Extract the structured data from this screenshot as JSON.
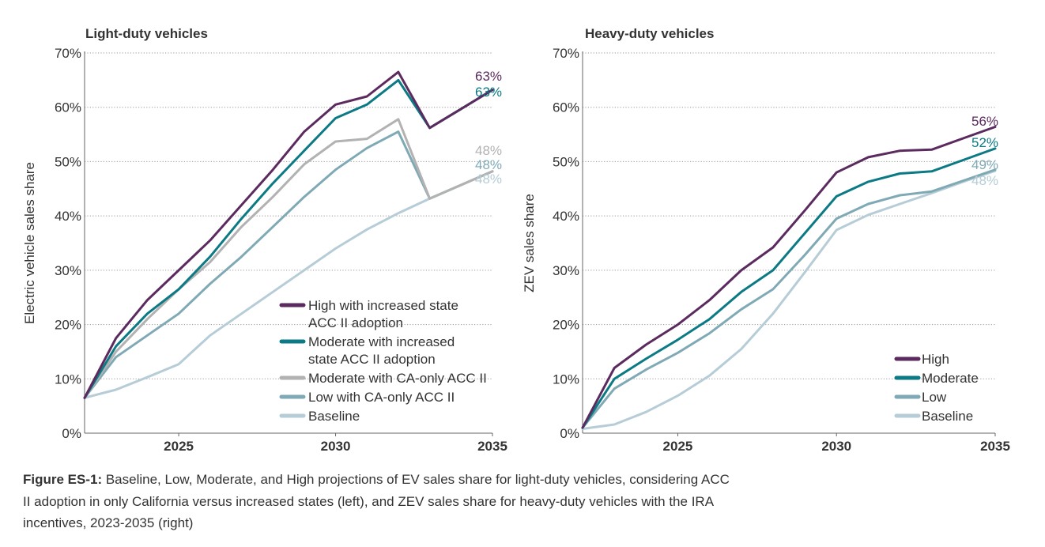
{
  "chart_data": [
    {
      "type": "line",
      "title": "Light-duty vehicles",
      "ylabel": "Electric vehicle sales share",
      "xlabel": "",
      "xlim": [
        2022,
        2035
      ],
      "ylim": [
        0,
        70
      ],
      "yticks": [
        "0%",
        "10%",
        "20%",
        "30%",
        "40%",
        "50%",
        "60%",
        "70%"
      ],
      "xticks": [
        "2025",
        "2030",
        "2035"
      ],
      "grid": "horizontal dotted",
      "legend_position": "bottom-right",
      "x": [
        2022,
        2023,
        2024,
        2025,
        2026,
        2027,
        2028,
        2029,
        2030,
        2031,
        2032,
        2033,
        2034,
        2035
      ],
      "series": [
        {
          "name": "High with increased state ACC II adoption",
          "legend_lines": [
            "High with increased state",
            "ACC II adoption"
          ],
          "color": "#5b2a5e",
          "values": [
            6.5,
            17.5,
            24.5,
            30,
            35.5,
            42,
            48.5,
            55.5,
            60.5,
            62,
            66.5,
            56.2,
            59.7,
            63.2
          ],
          "end_label": "63%"
        },
        {
          "name": "Moderate with increased state ACC II adoption",
          "legend_lines": [
            "Moderate with increased",
            "state ACC II adoption"
          ],
          "color": "#0b7a84",
          "values": [
            6.5,
            16,
            22,
            26.5,
            32.5,
            39.5,
            46,
            52,
            58,
            60.5,
            65,
            56.2,
            59.7,
            63.2
          ],
          "end_label": "63%"
        },
        {
          "name": "Moderate with CA-only ACC II",
          "legend_lines": [
            "Moderate with CA-only ACC II"
          ],
          "color": "#b2b2b2",
          "values": [
            6.5,
            15,
            21,
            26.5,
            31.5,
            38,
            43.5,
            49.5,
            53.7,
            54.2,
            57.8,
            43.2,
            45.7,
            48.2
          ],
          "end_label": "48%"
        },
        {
          "name": "Low with CA-only ACC II",
          "legend_lines": [
            "Low with CA-only ACC II"
          ],
          "color": "#7fa9b4",
          "values": [
            6.5,
            14,
            18,
            22,
            27.5,
            32.5,
            38,
            43.5,
            48.5,
            52.5,
            55.5,
            43.2,
            45.7,
            48.2
          ],
          "end_label": "48%"
        },
        {
          "name": "Baseline",
          "legend_lines": [
            "Baseline"
          ],
          "color": "#b6ccd6",
          "values": [
            6.5,
            8,
            10.3,
            12.7,
            18,
            22,
            26,
            30,
            34,
            37.5,
            40.5,
            43.2,
            45.7,
            48.2
          ],
          "end_label": "48%"
        }
      ]
    },
    {
      "type": "line",
      "title": "Heavy-duty vehicles",
      "ylabel": "ZEV sales share",
      "xlabel": "",
      "xlim": [
        2022,
        2035
      ],
      "ylim": [
        0,
        70
      ],
      "yticks": [
        "0%",
        "10%",
        "20%",
        "30%",
        "40%",
        "50%",
        "60%",
        "70%"
      ],
      "xticks": [
        "2025",
        "2030",
        "2035"
      ],
      "grid": "horizontal dotted",
      "legend_position": "bottom-right",
      "x": [
        2022,
        2023,
        2024,
        2025,
        2026,
        2027,
        2028,
        2029,
        2030,
        2031,
        2032,
        2033,
        2034,
        2035
      ],
      "series": [
        {
          "name": "High",
          "legend_lines": [
            "High"
          ],
          "color": "#5b2a5e",
          "values": [
            1,
            12,
            16.3,
            20,
            24.5,
            30,
            34.2,
            41,
            48,
            50.8,
            52,
            52.2,
            54.3,
            56.4
          ],
          "end_label": "56%"
        },
        {
          "name": "Moderate",
          "legend_lines": [
            "Moderate"
          ],
          "color": "#0b7a84",
          "values": [
            1,
            10,
            13.7,
            17.2,
            21,
            26,
            30,
            36.8,
            43.6,
            46.3,
            47.8,
            48.2,
            50.3,
            52.4
          ],
          "end_label": "52%"
        },
        {
          "name": "Low",
          "legend_lines": [
            "Low"
          ],
          "color": "#7fa9b4",
          "values": [
            1,
            8.2,
            11.7,
            14.8,
            18.4,
            22.8,
            26.5,
            32.8,
            39.5,
            42.2,
            43.8,
            44.5,
            46.5,
            48.5
          ],
          "end_label": "49%"
        },
        {
          "name": "Baseline",
          "legend_lines": [
            "Baseline"
          ],
          "color": "#b6ccd6",
          "values": [
            0.8,
            1.6,
            3.9,
            6.9,
            10.6,
            15.5,
            22,
            29.6,
            37.4,
            40.2,
            42.2,
            44.2,
            46.3,
            48.3
          ],
          "end_label": "48%"
        }
      ]
    }
  ],
  "caption": {
    "label": "Figure ES-1:",
    "text": " Baseline, Low, Moderate, and High projections of EV sales share for light-duty vehicles, considering ACC II adoption in only California versus increased states (left), and ZEV sales share for heavy-duty vehicles with the IRA incentives, 2023-2035 (right)"
  }
}
